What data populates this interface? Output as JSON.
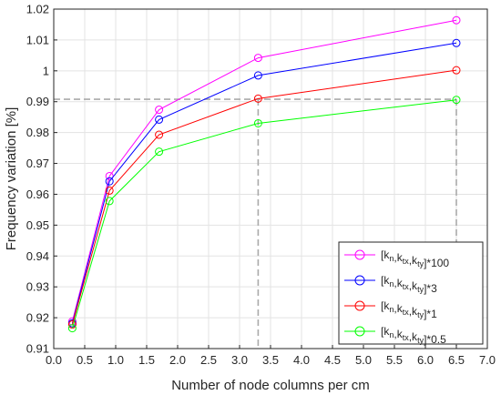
{
  "chart_data": {
    "type": "line",
    "xlabel": "Number of node columns per  cm",
    "ylabel": "Frequency variation [%]",
    "xlim": [
      0,
      7
    ],
    "ylim": [
      0.91,
      1.02
    ],
    "x_ticks": [
      0,
      0.5,
      1,
      1.5,
      2,
      2.5,
      3,
      3.5,
      4,
      4.5,
      5,
      5.5,
      6,
      6.5,
      7
    ],
    "x_tick_labels": [
      "0.0",
      "0.5",
      "1.0",
      "1.5",
      "2.0",
      "2.5",
      "3.0",
      "3.5",
      "4.0",
      "4.5",
      "5.0",
      "5.5",
      "6.0",
      "6.5",
      "7.0"
    ],
    "y_ticks": [
      0.91,
      0.92,
      0.93,
      0.94,
      0.95,
      0.96,
      0.97,
      0.98,
      0.99,
      1,
      1.01,
      1.02
    ],
    "y_tick_labels": [
      "0.91",
      "0.92",
      "0.93",
      "0.94",
      "0.95",
      "0.96",
      "0.97",
      "0.98",
      "0.99",
      "1",
      "1.01",
      "1.02"
    ],
    "grid": true,
    "legend_position": "bottom-right",
    "x": [
      0.3,
      0.9,
      1.7,
      3.3,
      6.5
    ],
    "series": [
      {
        "name": "[kn,ktx,kty]*100",
        "color": "#ff00ff",
        "values": [
          0.9188,
          0.9659,
          0.9874,
          1.0042,
          1.0164
        ]
      },
      {
        "name": "[kn,ktx,kty]*3",
        "color": "#0000ff",
        "values": [
          0.9182,
          0.9642,
          0.9842,
          0.9985,
          1.009
        ]
      },
      {
        "name": "[kn,ktx,kty]*1",
        "color": "#ff0000",
        "values": [
          0.9178,
          0.9612,
          0.9793,
          0.991,
          1.0002
        ]
      },
      {
        "name": "[kn,ktx,kty]*0.5",
        "color": "#00ff00",
        "values": [
          0.9166,
          0.9578,
          0.9738,
          0.983,
          0.9906
        ]
      }
    ],
    "reference": {
      "y": 0.9908,
      "x": [
        3.3,
        6.5
      ],
      "color": "#aaaaaa"
    },
    "legend_items": [
      {
        "coef": "100"
      },
      {
        "coef": "3"
      },
      {
        "coef": "1"
      },
      {
        "coef": "0.5"
      }
    ]
  }
}
